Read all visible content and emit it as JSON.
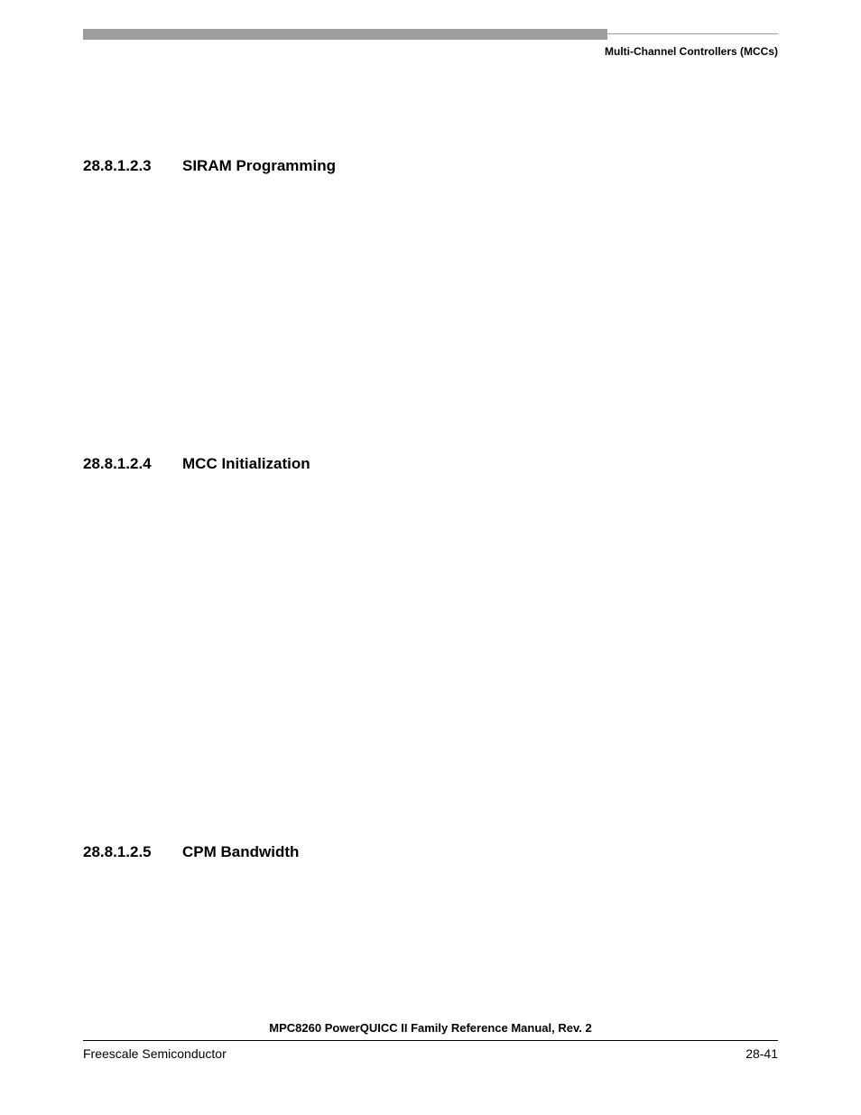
{
  "header": {
    "running_title": "Multi-Channel Controllers (MCCs)"
  },
  "sections": [
    {
      "number": "28.8.1.2.3",
      "title": "SIRAM Programming"
    },
    {
      "number": "28.8.1.2.4",
      "title": "MCC Initialization"
    },
    {
      "number": "28.8.1.2.5",
      "title": "CPM Bandwidth"
    }
  ],
  "footer": {
    "manual_title": "MPC8260 PowerQUICC II Family Reference Manual, Rev. 2",
    "company": "Freescale Semiconductor",
    "page_label": "28-41"
  },
  "style": {
    "page_bg": "#ffffff",
    "text_color": "#000000",
    "bar_color": "#9e9e9e",
    "heading_fontsize_pt": 13,
    "body_font": "Arial"
  }
}
